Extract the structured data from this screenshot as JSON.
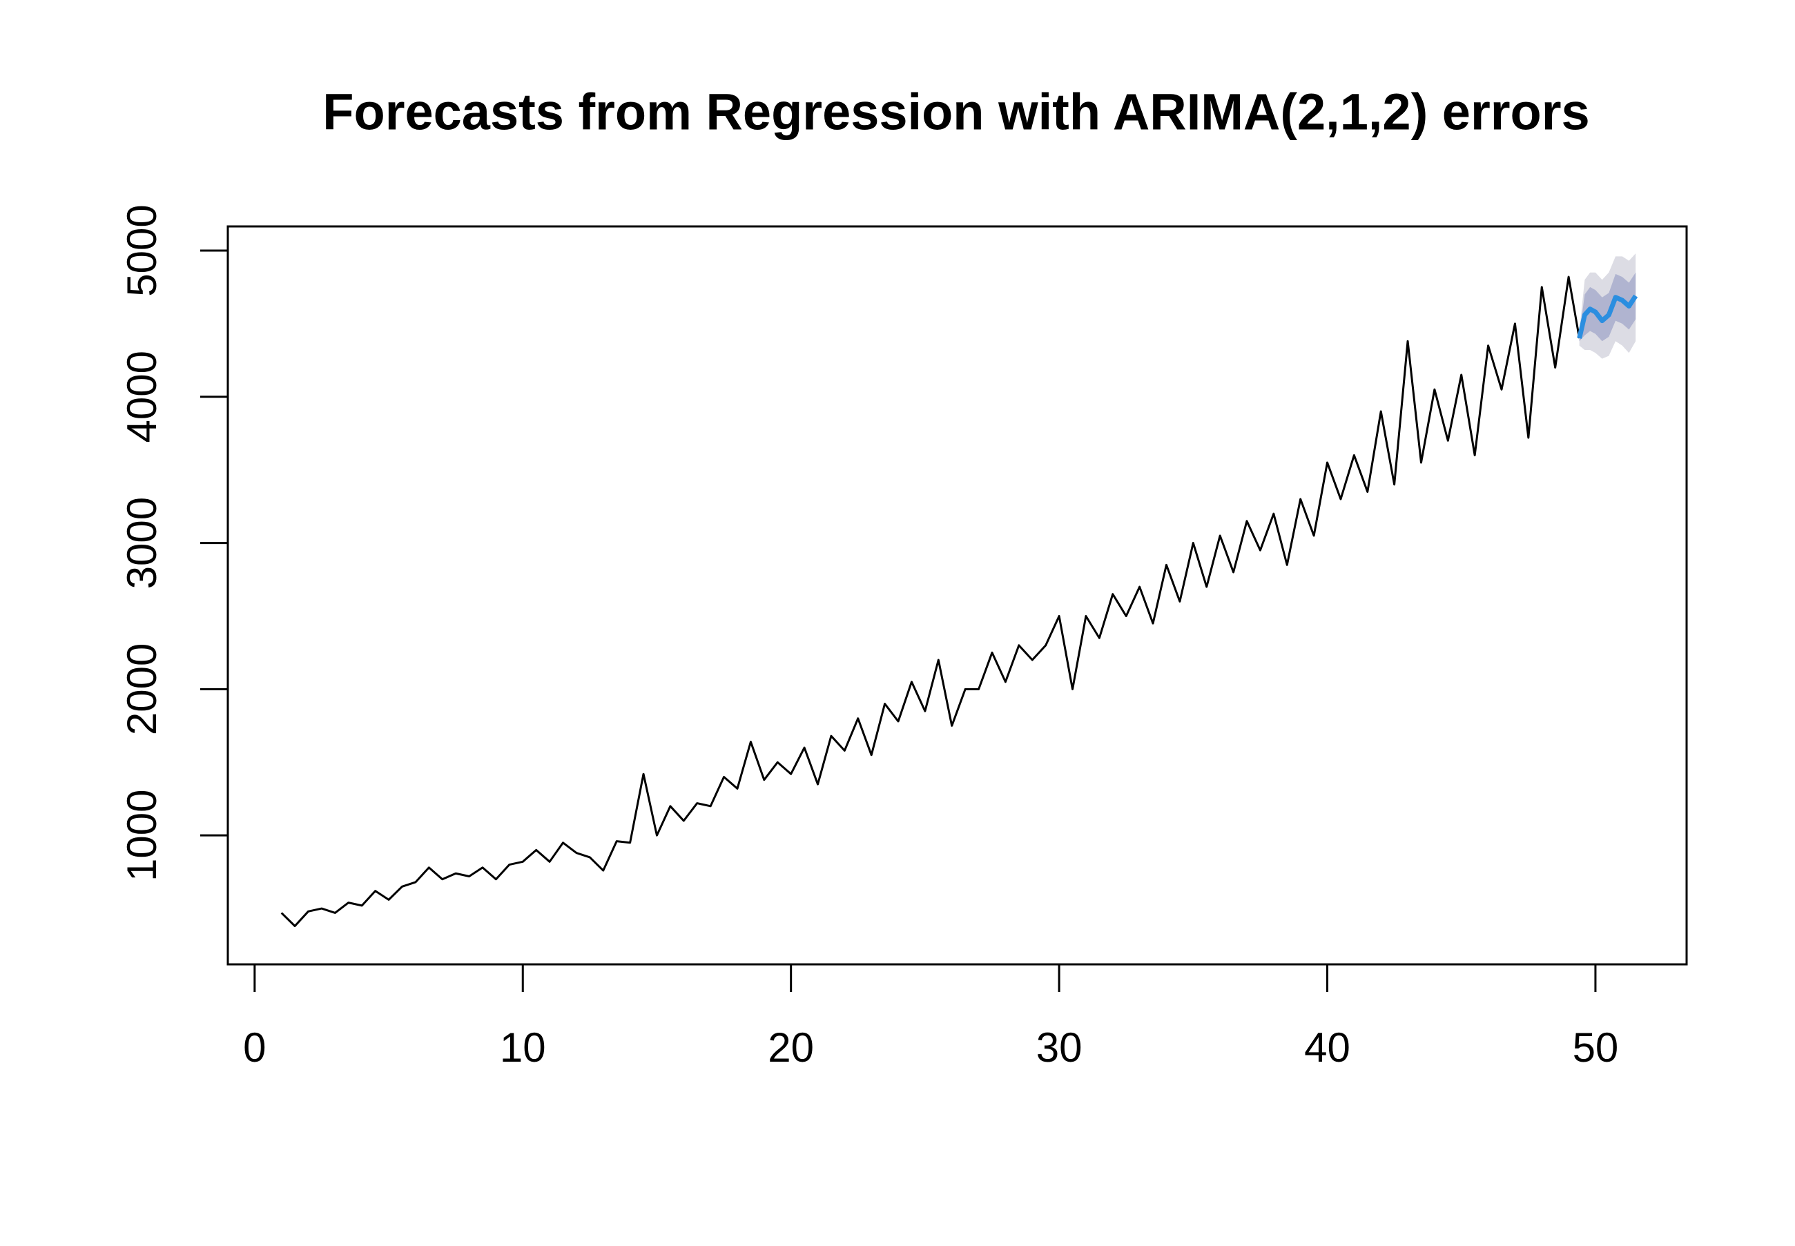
{
  "chart_data": {
    "type": "forecast",
    "title": "Forecasts from Regression with ARIMA(2,1,2) errors",
    "xlim": [
      -1,
      53.4
    ],
    "ylim": [
      118,
      5165
    ],
    "xticks": [
      0,
      10,
      20,
      30,
      40,
      50
    ],
    "yticks": [
      1000,
      2000,
      3000,
      4000,
      5000
    ],
    "history": {
      "color": "#000000",
      "x": [
        1,
        1.5,
        2,
        2.5,
        3,
        3.5,
        4,
        4.5,
        5,
        5.5,
        6,
        6.5,
        7,
        7.5,
        8,
        8.5,
        9,
        9.5,
        10,
        10.5,
        11,
        11.5,
        12,
        12.5,
        13,
        13.5,
        14,
        14.5,
        15,
        15.5,
        16,
        16.5,
        17,
        17.5,
        18,
        18.5,
        19,
        19.5,
        20,
        20.5,
        21,
        21.5,
        22,
        22.5,
        23,
        23.5,
        24,
        24.5,
        25,
        25.5,
        26,
        26.5,
        27,
        27.5,
        28,
        28.5,
        29,
        29.5,
        30,
        30.5,
        31,
        31.5,
        32,
        32.5,
        33,
        33.5,
        34,
        34.5,
        35,
        35.5,
        36,
        36.5,
        37,
        37.5,
        38,
        38.5,
        39,
        39.5,
        40,
        40.5,
        41,
        41.5,
        42,
        42.5,
        43,
        43.5,
        44,
        44.5,
        45,
        45.5,
        46,
        46.5,
        47,
        47.5,
        48,
        48.5,
        49,
        49.4
      ],
      "values": [
        470,
        380,
        480,
        500,
        470,
        540,
        520,
        620,
        560,
        650,
        680,
        780,
        700,
        740,
        720,
        780,
        700,
        800,
        820,
        900,
        820,
        950,
        880,
        850,
        760,
        960,
        950,
        1420,
        1000,
        1200,
        1100,
        1220,
        1200,
        1400,
        1320,
        1640,
        1380,
        1500,
        1420,
        1600,
        1350,
        1680,
        1580,
        1800,
        1550,
        1900,
        1780,
        2050,
        1850,
        2200,
        1750,
        2000,
        2000,
        2250,
        2050,
        2300,
        2200,
        2300,
        2500,
        2000,
        2500,
        2350,
        2650,
        2500,
        2700,
        2450,
        2850,
        2600,
        3000,
        2700,
        3050,
        2800,
        3150,
        2950,
        3200,
        2850,
        3300,
        3050,
        3550,
        3300,
        3600,
        3350,
        3900,
        3400,
        4380,
        3550,
        4050,
        3700,
        4150,
        3600,
        4350,
        4050,
        4500,
        3720,
        4750,
        4200,
        4820,
        4400
      ]
    },
    "forecast": {
      "color": "#2b8ee0",
      "color80": "#b0b4d0",
      "color95": "#dcdce4",
      "x": [
        49.4,
        49.6,
        49.8,
        50,
        50.25,
        50.5,
        50.75,
        51,
        51.25,
        51.5
      ],
      "mean": [
        4400,
        4560,
        4600,
        4580,
        4520,
        4560,
        4680,
        4660,
        4620,
        4690
      ],
      "lo80": [
        4380,
        4420,
        4450,
        4430,
        4380,
        4410,
        4520,
        4500,
        4460,
        4530
      ],
      "hi80": [
        4420,
        4700,
        4750,
        4730,
        4680,
        4710,
        4840,
        4820,
        4780,
        4850
      ],
      "lo95": [
        4350,
        4320,
        4320,
        4300,
        4260,
        4280,
        4380,
        4350,
        4300,
        4380
      ],
      "hi95": [
        4450,
        4800,
        4850,
        4850,
        4800,
        4850,
        4960,
        4960,
        4930,
        4980
      ]
    }
  }
}
